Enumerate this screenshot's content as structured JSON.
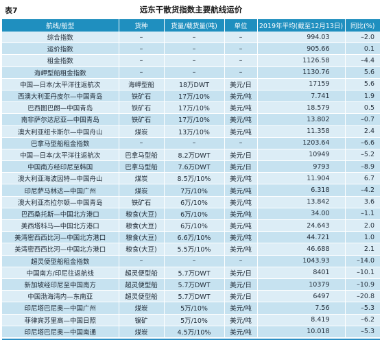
{
  "table_no": "表7",
  "title": "远东干散货指数主要航线运价",
  "headers": [
    "航线/船型",
    "货种",
    "货量/载货量(吨)",
    "单位",
    "2019年平均(截至12月13日)",
    "同比(%)"
  ],
  "rows": [
    [
      "综合指数",
      "–",
      "–",
      "–",
      "994.03",
      "–2.0"
    ],
    [
      "运价指数",
      "–",
      "–",
      "–",
      "905.66",
      "0.1"
    ],
    [
      "租金指数",
      "–",
      "–",
      "–",
      "1126.58",
      "–4.4"
    ],
    [
      "海岬型船租金指数",
      "–",
      "–",
      "–",
      "1130.76",
      "5.6"
    ],
    [
      "中国—日本/太平洋往返航次",
      "海岬型船",
      "18万DWT",
      "美元/日",
      "17159",
      "5.6"
    ],
    [
      "西澳大利亚丹皮尔—中国青岛",
      "铁矿石",
      "17万/10%",
      "美元/吨",
      "7.741",
      "1.9"
    ],
    [
      "巴西图巴朗—中国青岛",
      "铁矿石",
      "17万/10%",
      "美元/吨",
      "18.579",
      "0.5"
    ],
    [
      "南非萨尔达尼亚—中国青岛",
      "铁矿石",
      "17万/10%",
      "美元/吨",
      "13.802",
      "–0.7"
    ],
    [
      "澳大利亚纽卡斯尔—中国舟山",
      "煤炭",
      "13万/10%",
      "美元/吨",
      "11.358",
      "2.4"
    ],
    [
      "巴拿马型船租金指数",
      "–",
      "–",
      "–",
      "1203.64",
      "–6.6"
    ],
    [
      "中国—日本/太平洋往返航次",
      "巴拿马型船",
      "8.2万DWT",
      "美元/日",
      "10949",
      "–5.2"
    ],
    [
      "中国南方经印尼至韩国",
      "巴拿马型船",
      "7.6万DWT",
      "美元/日",
      "9793",
      "–8.9"
    ],
    [
      "澳大利亚海波因特—中国舟山",
      "煤炭",
      "8.5万/10%",
      "美元/吨",
      "11.904",
      "6.7"
    ],
    [
      "印尼萨马林达—中国广州",
      "煤炭",
      "7万/10%",
      "美元/吨",
      "6.318",
      "–4.2"
    ],
    [
      "澳大利亚杰拉尔顿—中国青岛",
      "铁矿石",
      "6万/10%",
      "美元/吨",
      "13.842",
      "3.6"
    ],
    [
      "巴西桑托斯—中国北方港口",
      "粮食(大豆)",
      "6万/10%",
      "美元/吨",
      "34.00",
      "–1.1"
    ],
    [
      "美西塔科马—中国北方港口",
      "粮食(大豆)",
      "6万/10%",
      "美元/吨",
      "24.643",
      "2.0"
    ],
    [
      "美湾密西西比河—中国北方港口",
      "粮食(大豆)",
      "6.6万/10%",
      "美元/吨",
      "44.721",
      "1.0"
    ],
    [
      "美湾密西西比河—中国北方港口",
      "粮食(大豆)",
      "5.5万/10%",
      "美元/吨",
      "46.688",
      "2.1"
    ],
    [
      "超灵便型船租金指数",
      "–",
      "–",
      "–",
      "1043.93",
      "–14.0"
    ],
    [
      "中国南方/印尼往返航线",
      "超灵便型船",
      "5.7万DWT",
      "美元/日",
      "8401",
      "–10.1"
    ],
    [
      "新加坡经印尼至中国南方",
      "超灵便型船",
      "5.7万DWT",
      "美元/日",
      "10379",
      "–10.9"
    ],
    [
      "中国渤海湾内—东南亚",
      "超灵便型船",
      "5.7万DWT",
      "美元/日",
      "6497",
      "–20.8"
    ],
    [
      "印尼塔巴尼奥—中国广州",
      "煤炭",
      "5万/10%",
      "美元/吨",
      "7.56",
      "–5.3"
    ],
    [
      "菲律宾苏里高—中国日照",
      "镍矿",
      "5万/10%",
      "美元/吨",
      "8.419",
      "–6.2"
    ],
    [
      "印尼塔巴尼奥—中国南通",
      "煤炭",
      "4.5万/10%",
      "美元/吨",
      "10.018",
      "–5.3"
    ]
  ]
}
